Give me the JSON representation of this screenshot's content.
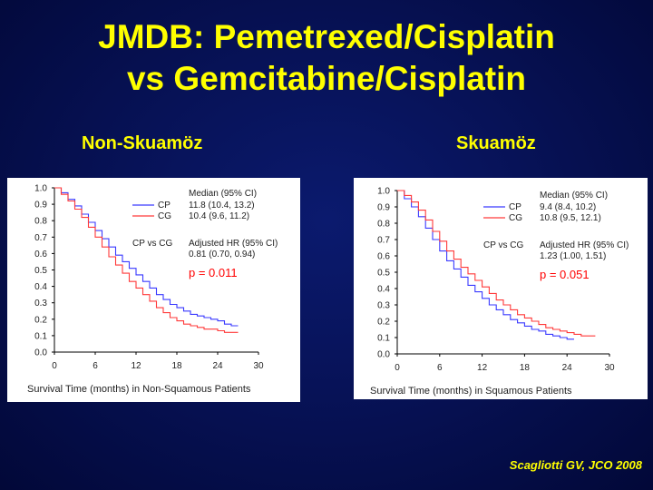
{
  "title": {
    "line1": "JMDB: Pemetrexed/Cisplatin",
    "line2": "vs Gemcitabine/Cisplatin"
  },
  "citation": "Scagliotti GV, JCO 2008",
  "colors": {
    "cp": "#3a3aff",
    "cg": "#ff3a3a",
    "annotation": "#ff0000",
    "text": "#222222"
  },
  "chart_data": [
    {
      "type": "line",
      "panel_label": "Non-Skuamöz",
      "xlabel": "Survival Time (months) in Non-Squamous Patients",
      "xlim": [
        0,
        30
      ],
      "ylim": [
        0,
        1
      ],
      "xticks": [
        "0",
        "6",
        "12",
        "18",
        "24",
        "30"
      ],
      "yticks": [
        "0.0",
        "0.1",
        "0.2",
        "0.3",
        "0.4",
        "0.5",
        "0.6",
        "0.7",
        "0.8",
        "0.9",
        "1.0"
      ],
      "legend": {
        "header": "Median (95% CI)",
        "entries": [
          {
            "name": "CP",
            "value": "11.8 (10.4, 13.2)"
          },
          {
            "name": "CG",
            "value": "10.4 (9.6, 11.2)"
          }
        ],
        "hr_label": "CP vs CG",
        "hr_header": "Adjusted HR (95% CI)",
        "hr_value": "0.81 (0.70, 0.94)"
      },
      "p_value": "p = 0.011",
      "series": [
        {
          "name": "CP",
          "x": [
            0,
            1,
            2,
            3,
            4,
            5,
            6,
            7,
            8,
            9,
            10,
            11,
            12,
            13,
            14,
            15,
            16,
            17,
            18,
            19,
            20,
            21,
            22,
            23,
            24,
            25,
            26,
            27
          ],
          "y": [
            1.0,
            0.97,
            0.93,
            0.89,
            0.84,
            0.79,
            0.74,
            0.69,
            0.64,
            0.59,
            0.55,
            0.51,
            0.47,
            0.43,
            0.39,
            0.35,
            0.32,
            0.29,
            0.27,
            0.25,
            0.23,
            0.22,
            0.21,
            0.2,
            0.19,
            0.17,
            0.16,
            0.16
          ]
        },
        {
          "name": "CG",
          "x": [
            0,
            1,
            2,
            3,
            4,
            5,
            6,
            7,
            8,
            9,
            10,
            11,
            12,
            13,
            14,
            15,
            16,
            17,
            18,
            19,
            20,
            21,
            22,
            23,
            24,
            25,
            26,
            27
          ],
          "y": [
            1.0,
            0.96,
            0.92,
            0.87,
            0.82,
            0.76,
            0.7,
            0.64,
            0.58,
            0.53,
            0.48,
            0.43,
            0.39,
            0.35,
            0.31,
            0.27,
            0.24,
            0.21,
            0.19,
            0.17,
            0.16,
            0.15,
            0.14,
            0.14,
            0.13,
            0.12,
            0.12,
            0.12
          ]
        }
      ]
    },
    {
      "type": "line",
      "panel_label": "Skuamöz",
      "xlabel": "Survival Time (months) in Squamous Patients",
      "xlim": [
        0,
        30
      ],
      "ylim": [
        0,
        1
      ],
      "xticks": [
        "0",
        "6",
        "12",
        "18",
        "24",
        "30"
      ],
      "yticks": [
        "0.0",
        "0.1",
        "0.2",
        "0.3",
        "0.4",
        "0.5",
        "0.6",
        "0.7",
        "0.8",
        "0.9",
        "1.0"
      ],
      "legend": {
        "header": "Median (95% CI)",
        "entries": [
          {
            "name": "CP",
            "value": "9.4 (8.4, 10.2)"
          },
          {
            "name": "CG",
            "value": "10.8 (9.5, 12.1)"
          }
        ],
        "hr_label": "CP vs CG",
        "hr_header": "Adjusted HR (95% CI)",
        "hr_value": "1.23 (1.00, 1.51)"
      },
      "p_value": "p = 0.051",
      "series": [
        {
          "name": "CP",
          "x": [
            0,
            1,
            2,
            3,
            4,
            5,
            6,
            7,
            8,
            9,
            10,
            11,
            12,
            13,
            14,
            15,
            16,
            17,
            18,
            19,
            20,
            21,
            22,
            23,
            24,
            25
          ],
          "y": [
            1.0,
            0.95,
            0.9,
            0.84,
            0.77,
            0.7,
            0.63,
            0.57,
            0.52,
            0.47,
            0.42,
            0.38,
            0.34,
            0.3,
            0.27,
            0.24,
            0.21,
            0.19,
            0.17,
            0.15,
            0.14,
            0.12,
            0.11,
            0.1,
            0.09,
            0.09
          ]
        },
        {
          "name": "CG",
          "x": [
            0,
            1,
            2,
            3,
            4,
            5,
            6,
            7,
            8,
            9,
            10,
            11,
            12,
            13,
            14,
            15,
            16,
            17,
            18,
            19,
            20,
            21,
            22,
            23,
            24,
            25,
            26,
            27,
            28
          ],
          "y": [
            1.0,
            0.97,
            0.93,
            0.88,
            0.82,
            0.75,
            0.69,
            0.63,
            0.58,
            0.53,
            0.49,
            0.45,
            0.41,
            0.37,
            0.33,
            0.3,
            0.27,
            0.24,
            0.22,
            0.2,
            0.18,
            0.16,
            0.15,
            0.14,
            0.13,
            0.12,
            0.11,
            0.11,
            0.11
          ]
        }
      ]
    }
  ]
}
